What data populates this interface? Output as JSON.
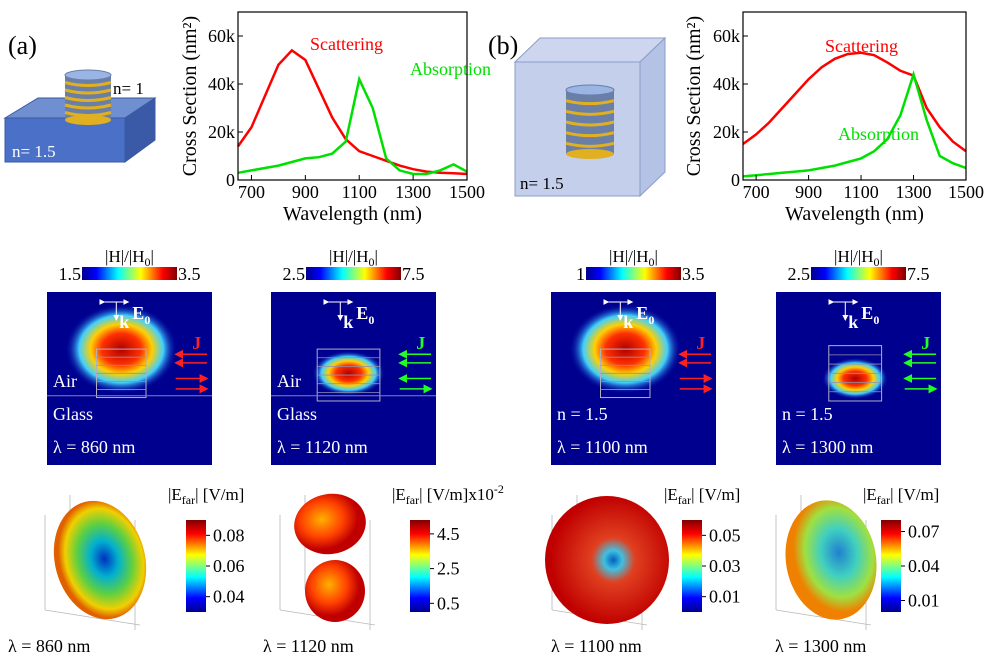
{
  "chart_data": [
    {
      "type": "line",
      "xlabel": "Wavelength (nm)",
      "ylabel": "Cross Section (nm²)",
      "x": [
        650,
        700,
        750,
        800,
        850,
        900,
        950,
        1000,
        1050,
        1100,
        1150,
        1200,
        1250,
        1300,
        1350,
        1400,
        1450,
        1500
      ],
      "series": [
        {
          "name": "Scattering",
          "color": "#ff0000",
          "values": [
            14000,
            22000,
            35000,
            48000,
            54000,
            50000,
            38000,
            26000,
            17000,
            12000,
            10000,
            8000,
            6000,
            4500,
            3500,
            3000,
            2800,
            2500
          ]
        },
        {
          "name": "Absorption",
          "color": "#00e000",
          "values": [
            3000,
            4000,
            5000,
            6000,
            7500,
            9000,
            9500,
            11000,
            16000,
            42000,
            30000,
            9000,
            4000,
            2500,
            2500,
            4000,
            6500,
            3500
          ]
        }
      ],
      "xlim": [
        650,
        1500
      ],
      "ylim": [
        0,
        70000
      ],
      "xticks": [
        700,
        900,
        1100,
        1300,
        1500
      ],
      "yticks": [
        0,
        {
          "value": 20000,
          "label": "20k"
        },
        {
          "value": 40000,
          "label": "40k"
        },
        {
          "value": 60000,
          "label": "60k"
        }
      ]
    },
    {
      "type": "line",
      "xlabel": "Wavelength (nm)",
      "ylabel": "Cross Section (nm²)",
      "x": [
        650,
        700,
        750,
        800,
        850,
        900,
        950,
        1000,
        1050,
        1100,
        1150,
        1200,
        1250,
        1300,
        1350,
        1400,
        1450,
        1500
      ],
      "series": [
        {
          "name": "Scattering",
          "color": "#ff0000",
          "values": [
            15000,
            19000,
            24000,
            30000,
            36000,
            42000,
            47000,
            50500,
            52500,
            53000,
            52000,
            49000,
            45500,
            43500,
            30000,
            22000,
            16000,
            12000
          ]
        },
        {
          "name": "Absorption",
          "color": "#00e000",
          "values": [
            1500,
            2000,
            2500,
            3000,
            3500,
            4000,
            5000,
            6000,
            7500,
            9000,
            12000,
            17000,
            27000,
            44000,
            25000,
            10000,
            7000,
            5000
          ]
        }
      ],
      "xlim": [
        650,
        1500
      ],
      "ylim": [
        0,
        70000
      ],
      "xticks": [
        700,
        900,
        1100,
        1300,
        1500
      ],
      "yticks": [
        0,
        {
          "value": 20000,
          "label": "20k"
        },
        {
          "value": 40000,
          "label": "40k"
        },
        {
          "value": 60000,
          "label": "60k"
        }
      ]
    }
  ],
  "panels": [
    {
      "label": "(a)",
      "particle_index": "n= 1",
      "medium_index": "n= 1.5"
    },
    {
      "label": "(b)",
      "medium_index": "n= 1.5"
    }
  ],
  "near_field": [
    {
      "title_head": "|H|/|H",
      "title_sub": "0",
      "title_tail": "|",
      "cmin": 1.5,
      "cmax": 3.5,
      "k": "k",
      "e": "E",
      "e_sub": "0",
      "current": "J",
      "upper_medium": "Air",
      "lower_medium": "Glass",
      "wavelength": "λ = 860 nm"
    },
    {
      "title_head": "|H|/|H",
      "title_sub": "0",
      "title_tail": "|",
      "cmin": 2.5,
      "cmax": 7.5,
      "k": "k",
      "e": "E",
      "e_sub": "0",
      "current": "J",
      "upper_medium": "Air",
      "lower_medium": "Glass",
      "wavelength": "λ = 1120 nm"
    },
    {
      "title_head": "|H|/|H",
      "title_sub": "0",
      "title_tail": "|",
      "cmin": 1,
      "cmax": 3.5,
      "k": "k",
      "e": "E",
      "e_sub": "0",
      "current": "J",
      "lower_medium": "n = 1.5",
      "wavelength": "λ = 1100 nm"
    },
    {
      "title_head": "|H|/|H",
      "title_sub": "0",
      "title_tail": "|",
      "cmin": 2.5,
      "cmax": 7.5,
      "k": "k",
      "e": "E",
      "e_sub": "0",
      "current": "J",
      "lower_medium": "n = 1.5",
      "wavelength": "λ = 1300 nm"
    }
  ],
  "far_field": [
    {
      "title_head": "|E",
      "title_sub": "far",
      "title_tail": "|  [V/m]",
      "clim": [
        0.03,
        0.09
      ],
      "ticks": [
        0.08,
        0.06,
        0.04
      ],
      "wavelength": "λ = 860 nm"
    },
    {
      "title_head": "|E",
      "title_sub": "far",
      "title_tail": "|  [V/m]",
      "multiplier": "x10",
      "multiplier_exp": "-2",
      "clim": [
        0,
        5.3
      ],
      "ticks": [
        4.5,
        2.5,
        0.5
      ],
      "wavelength": "λ = 1120 nm"
    },
    {
      "title_head": "|E",
      "title_sub": "far",
      "title_tail": "|  [V/m]",
      "clim": [
        0,
        0.06
      ],
      "ticks": [
        0.05,
        0.03,
        0.01
      ],
      "wavelength": "λ = 1100 nm"
    },
    {
      "title_head": "|E",
      "title_sub": "far",
      "title_tail": "|  [V/m]",
      "clim": [
        0,
        0.08
      ],
      "ticks": [
        0.07,
        0.04,
        0.01
      ],
      "wavelength": "λ = 1300 nm"
    }
  ]
}
